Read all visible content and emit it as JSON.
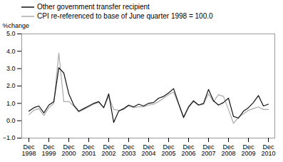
{
  "chart_data": {
    "type": "line",
    "ylabel": "%change",
    "categories": [
      "Dec\n1998",
      null,
      null,
      null,
      "Dec\n1999",
      null,
      null,
      null,
      "Dec\n2000",
      null,
      null,
      null,
      "Dec\n2001",
      null,
      null,
      null,
      "Dec\n2002",
      null,
      null,
      null,
      "Dec\n2003",
      null,
      null,
      null,
      "Dec\n2004",
      null,
      null,
      null,
      "Dec\n2005",
      null,
      null,
      null,
      "Dec\n2006",
      null,
      null,
      null,
      "Dec\n2007",
      null,
      null,
      null,
      "Dec\n2008",
      null,
      null,
      null,
      "Dec\n2009",
      null,
      null,
      null,
      "Dec\n2010"
    ],
    "series": [
      {
        "name": "Other government transfer recipient",
        "color": "#111111",
        "values": [
          0.55,
          0.75,
          0.85,
          0.45,
          0.9,
          1.1,
          3.05,
          2.75,
          1.55,
          0.9,
          0.55,
          0.7,
          0.85,
          1.0,
          1.1,
          0.75,
          1.55,
          -0.1,
          0.55,
          0.7,
          0.9,
          0.8,
          0.95,
          0.85,
          1.0,
          1.05,
          1.3,
          1.4,
          1.6,
          1.85,
          1.0,
          0.2,
          0.8,
          1.15,
          0.9,
          1.0,
          1.8,
          1.15,
          0.9,
          1.05,
          1.3,
          0.25,
          0.15,
          0.55,
          0.75,
          1.05,
          1.45,
          0.85,
          0.95
        ]
      },
      {
        "name": "CPI re-referenced to base of June quarter 1998 = 100.0",
        "color": "#aaaaaa",
        "values": [
          0.35,
          0.6,
          0.7,
          0.3,
          0.75,
          1.0,
          3.9,
          1.1,
          1.1,
          0.85,
          0.5,
          0.65,
          0.8,
          0.95,
          1.05,
          0.75,
          1.4,
          0.65,
          0.6,
          0.65,
          0.85,
          0.75,
          0.8,
          0.8,
          0.9,
          0.95,
          1.1,
          1.3,
          1.5,
          1.65,
          0.95,
          0.15,
          0.75,
          1.1,
          0.9,
          0.95,
          1.55,
          1.1,
          1.5,
          1.4,
          0.65,
          -0.15,
          0.2,
          0.4,
          0.6,
          0.7,
          0.8,
          0.65,
          0.65
        ]
      }
    ],
    "ylim": [
      -1,
      5
    ],
    "yticks": [
      -1,
      0,
      1,
      2,
      3,
      4,
      5
    ],
    "grid": false,
    "legend": "upper left"
  }
}
